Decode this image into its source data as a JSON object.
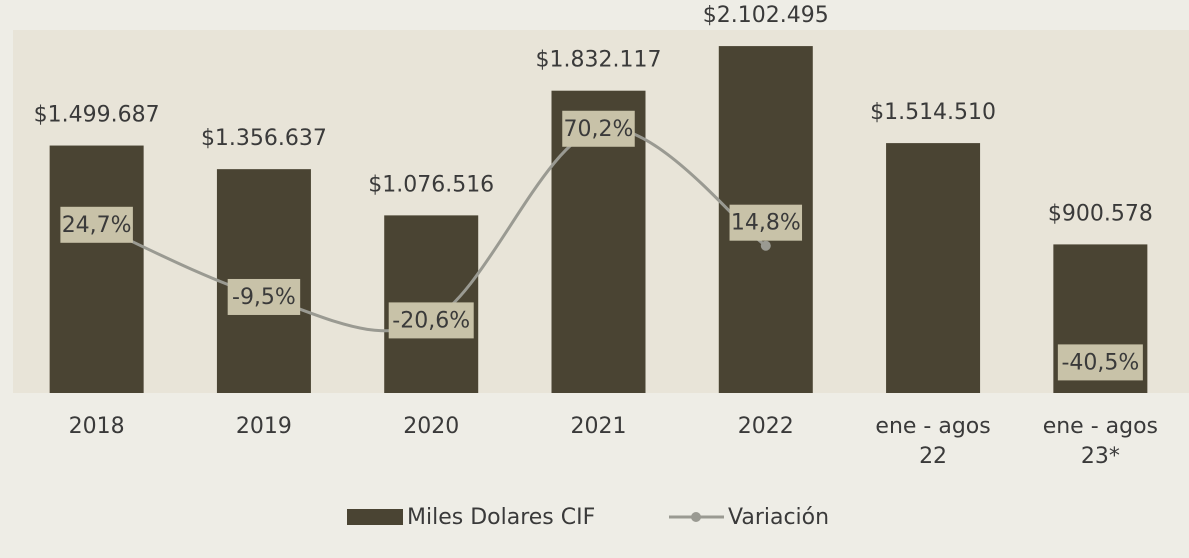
{
  "chart_data": {
    "type": "bar_line",
    "categories": [
      "2018",
      "2019",
      "2020",
      "2021",
      "2022",
      "ene - agos 22",
      "ene - agos 23*"
    ],
    "series": [
      {
        "name": "Miles Dolares CIF",
        "type": "bar",
        "color": "#4a4433",
        "values": [
          1499687,
          1356637,
          1076516,
          1832117,
          2102495,
          1514510,
          900578
        ],
        "value_labels": [
          "$1.499.687",
          "$1.356.637",
          "$1.076.516",
          "$1.832.117",
          "$2.102.495",
          "$1.514.510",
          "$900.578"
        ]
      },
      {
        "name": "Variación",
        "type": "line",
        "axis": "y2",
        "color": "#9a9a92",
        "values": [
          24.7,
          -9.5,
          -20.6,
          70.2,
          14.8,
          null,
          -40.5
        ],
        "value_labels": [
          "24,7%",
          "-9,5%",
          "-20,6%",
          "70,2%",
          "14,8%",
          null,
          "-40,5%"
        ]
      }
    ],
    "ylim": [
      0,
      2200000
    ],
    "y2lim": [
      -55,
      117
    ],
    "legend": "bottom"
  }
}
